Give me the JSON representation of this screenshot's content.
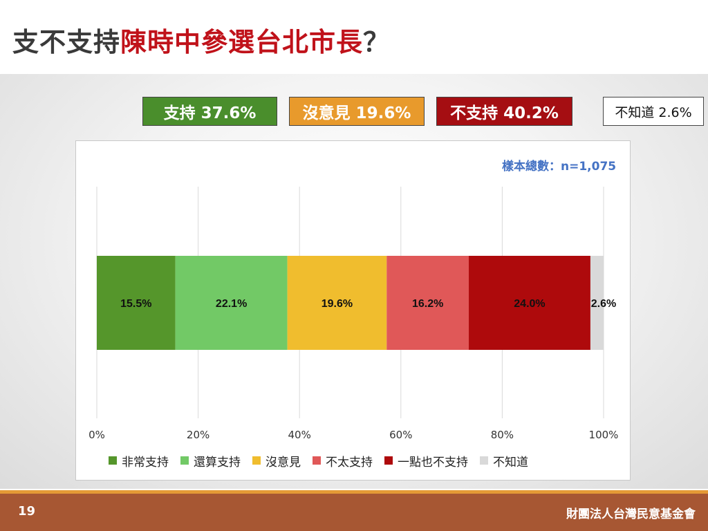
{
  "header": {
    "title_prefix": "支不支持",
    "title_highlight": "陳時中參選台北市長",
    "title_suffix": "？"
  },
  "summary": {
    "support": "支持 37.6%",
    "neutral": "沒意見 19.6%",
    "oppose": "不支持 40.2%",
    "unknown": "不知道 2.6%"
  },
  "sample_note": "樣本總數：n=1,075",
  "chart_data": {
    "type": "bar",
    "orientation": "horizontal",
    "stacked": true,
    "title": "",
    "xlabel": "",
    "ylabel": "",
    "xlim": [
      0,
      100
    ],
    "x_ticks": [
      "0%",
      "20%",
      "40%",
      "60%",
      "80%",
      "100%"
    ],
    "grid": true,
    "legend_position": "bottom",
    "series": [
      {
        "name": "非常支持",
        "value": 15.5,
        "label": "15.5%",
        "color": "#55962b"
      },
      {
        "name": "還算支持",
        "value": 22.1,
        "label": "22.1%",
        "color": "#72c966"
      },
      {
        "name": "沒意見",
        "value": 19.6,
        "label": "19.6%",
        "color": "#f0bd2e"
      },
      {
        "name": "不太支持",
        "value": 16.2,
        "label": "16.2%",
        "color": "#e05858"
      },
      {
        "name": "一點也不支持",
        "value": 24.0,
        "label": "24.0%",
        "color": "#ae0a0c"
      },
      {
        "name": "不知道",
        "value": 2.6,
        "label": "2.6%",
        "color": "#d9d9d9"
      }
    ]
  },
  "footer": {
    "page_number": "19",
    "organization": "財團法人台灣民意基金會"
  }
}
